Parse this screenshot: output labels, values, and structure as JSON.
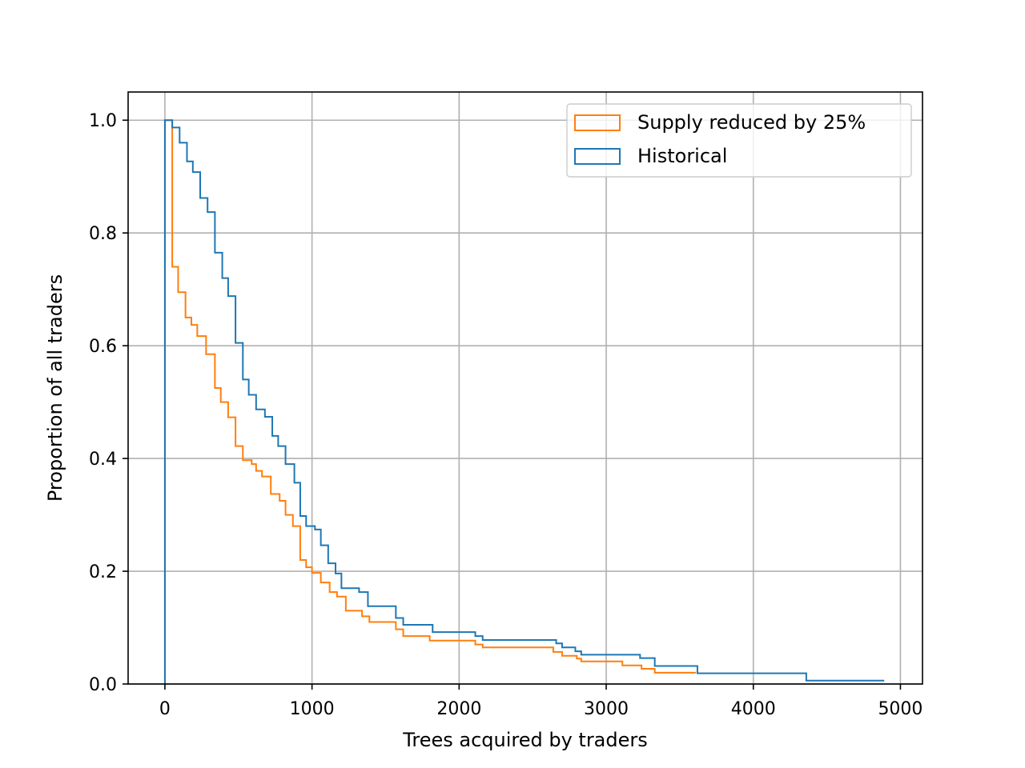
{
  "chart_data": {
    "type": "line",
    "step": "post",
    "title": "",
    "xlabel": "Trees acquired by traders",
    "ylabel": "Proportion of all traders",
    "xlim": [
      -250,
      5150
    ],
    "ylim": [
      0,
      1.05
    ],
    "xticks": [
      0,
      1000,
      2000,
      3000,
      4000,
      5000
    ],
    "xtick_labels": [
      "0",
      "1000",
      "2000",
      "3000",
      "4000",
      "5000"
    ],
    "yticks": [
      0.0,
      0.2,
      0.4,
      0.6,
      0.8,
      1.0
    ],
    "ytick_labels": [
      "0.0",
      "0.2",
      "0.4",
      "0.6",
      "0.8",
      "1.0"
    ],
    "grid": true,
    "legend_position": "upper right",
    "series": [
      {
        "name": "Supply reduced by 25%",
        "color": "#ff7f0e",
        "x": [
          0,
          0,
          50,
          50,
          90,
          90,
          140,
          140,
          180,
          180,
          220,
          220,
          280,
          280,
          340,
          340,
          380,
          380,
          430,
          430,
          480,
          480,
          530,
          530,
          590,
          590,
          620,
          620,
          660,
          660,
          720,
          720,
          780,
          780,
          820,
          820,
          870,
          870,
          920,
          920,
          960,
          960,
          1000,
          1000,
          1060,
          1060,
          1120,
          1120,
          1170,
          1170,
          1230,
          1230,
          1340,
          1340,
          1390,
          1390,
          1570,
          1570,
          1620,
          1620,
          1800,
          1800,
          2110,
          2110,
          2160,
          2160,
          2640,
          2640,
          2700,
          2700,
          2800,
          2800,
          2830,
          2830,
          3110,
          3110,
          3240,
          3240,
          3330,
          3330,
          3610
        ],
        "y": [
          0,
          1.0,
          1.0,
          0.74,
          0.74,
          0.695,
          0.695,
          0.65,
          0.65,
          0.637,
          0.637,
          0.617,
          0.617,
          0.585,
          0.585,
          0.525,
          0.525,
          0.5,
          0.5,
          0.473,
          0.473,
          0.422,
          0.422,
          0.397,
          0.397,
          0.39,
          0.39,
          0.378,
          0.378,
          0.368,
          0.368,
          0.337,
          0.337,
          0.325,
          0.325,
          0.3,
          0.3,
          0.28,
          0.28,
          0.22,
          0.22,
          0.207,
          0.207,
          0.197,
          0.197,
          0.18,
          0.18,
          0.163,
          0.163,
          0.155,
          0.155,
          0.13,
          0.13,
          0.12,
          0.12,
          0.11,
          0.11,
          0.097,
          0.097,
          0.085,
          0.085,
          0.077,
          0.077,
          0.07,
          0.07,
          0.065,
          0.065,
          0.057,
          0.057,
          0.05,
          0.05,
          0.045,
          0.045,
          0.04,
          0.04,
          0.033,
          0.033,
          0.027,
          0.027,
          0.02,
          0.02
        ]
      },
      {
        "name": "Historical",
        "color": "#1f77b4",
        "x": [
          0,
          0,
          50,
          50,
          100,
          100,
          150,
          150,
          190,
          190,
          240,
          240,
          290,
          290,
          340,
          340,
          390,
          390,
          430,
          430,
          480,
          480,
          530,
          530,
          570,
          570,
          620,
          620,
          680,
          680,
          730,
          730,
          770,
          770,
          820,
          820,
          880,
          880,
          920,
          920,
          960,
          960,
          1020,
          1020,
          1060,
          1060,
          1110,
          1110,
          1160,
          1160,
          1200,
          1200,
          1320,
          1320,
          1380,
          1380,
          1570,
          1570,
          1620,
          1620,
          1820,
          1820,
          2110,
          2110,
          2160,
          2160,
          2660,
          2660,
          2700,
          2700,
          2790,
          2790,
          2830,
          2830,
          3230,
          3230,
          3330,
          3330,
          3620,
          3620,
          4360,
          4360,
          4890
        ],
        "y": [
          0,
          1.0,
          1.0,
          0.987,
          0.987,
          0.96,
          0.96,
          0.927,
          0.927,
          0.908,
          0.908,
          0.862,
          0.862,
          0.837,
          0.837,
          0.765,
          0.765,
          0.72,
          0.72,
          0.688,
          0.688,
          0.605,
          0.605,
          0.54,
          0.54,
          0.513,
          0.513,
          0.487,
          0.487,
          0.474,
          0.474,
          0.44,
          0.44,
          0.422,
          0.422,
          0.39,
          0.39,
          0.357,
          0.357,
          0.298,
          0.298,
          0.28,
          0.28,
          0.274,
          0.274,
          0.246,
          0.246,
          0.214,
          0.214,
          0.196,
          0.196,
          0.17,
          0.17,
          0.163,
          0.163,
          0.138,
          0.138,
          0.117,
          0.117,
          0.105,
          0.105,
          0.092,
          0.092,
          0.085,
          0.085,
          0.078,
          0.078,
          0.072,
          0.072,
          0.065,
          0.065,
          0.058,
          0.058,
          0.052,
          0.052,
          0.046,
          0.046,
          0.032,
          0.032,
          0.019,
          0.019,
          0.006,
          0.006
        ]
      }
    ]
  }
}
